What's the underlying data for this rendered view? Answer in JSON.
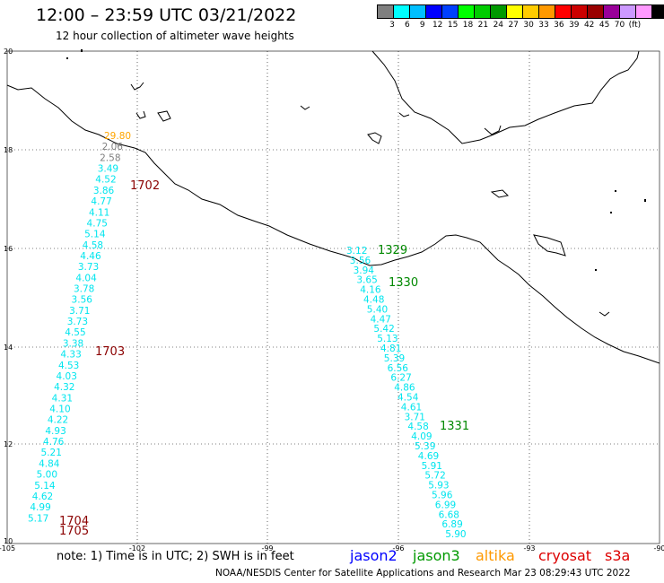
{
  "header": {
    "title": "12:00 – 23:59 UTC 03/21/2022",
    "subtitle": "12 hour collection of altimeter wave heights"
  },
  "color_scale": {
    "colors": [
      "#7f7f7f",
      "#00ffff",
      "#00bfff",
      "#0000ff",
      "#0040ff",
      "#00ff00",
      "#00cc00",
      "#009900",
      "#ffff00",
      "#ffcc00",
      "#ff9900",
      "#ff0000",
      "#cc0000",
      "#990000",
      "#990099",
      "#cc99ff",
      "#ff99ff",
      "#000000"
    ],
    "labels": [
      "3",
      "6",
      "9",
      "12",
      "15",
      "18",
      "21",
      "24",
      "27",
      "30",
      "33",
      "36",
      "39",
      "42",
      "45",
      "70",
      "(ft)"
    ]
  },
  "axes": {
    "lat_labels": [
      "20",
      "18",
      "16",
      "14",
      "12",
      "10"
    ],
    "lon_labels": [
      "-105",
      "-102",
      "-99",
      "-96",
      "-93",
      "-90"
    ]
  },
  "track_colors": {
    "swh": "#00e5ee",
    "swh_gray": "#7f7f7f",
    "swh_orange": "#ffa500",
    "jason3_time": "#008800",
    "cryosat_time": "#8b0000"
  },
  "tracks": {
    "west_swh": [
      "29.80",
      "2.06",
      "2.58",
      "3.49",
      "4.52",
      "3.86",
      "4.77",
      "4.11",
      "4.75",
      "5.14",
      "4.58",
      "4.46",
      "3.73",
      "4.04",
      "3.78",
      "3.56",
      "3.71",
      "3.73",
      "4.55",
      "3.38",
      "4.33",
      "4.53",
      "4.03",
      "4.32",
      "4.31",
      "4.10",
      "4.22",
      "4.93",
      "4.76",
      "5.21",
      "4.84",
      "5.00",
      "5.14",
      "4.62",
      "4.99",
      "5.17"
    ],
    "west_times": [
      "1702",
      "1703",
      "1704",
      "1705"
    ],
    "east_swh": [
      "3.12",
      "3.56",
      "3.94",
      "3.65",
      "4.16",
      "4.48",
      "5.40",
      "4.47",
      "5.42",
      "5.13",
      "4.81",
      "5.39",
      "6.56",
      "6.27",
      "4.86",
      "4.54",
      "4.61",
      "3.71",
      "4.58",
      "4.09",
      "5.39",
      "4.69",
      "5.91",
      "5.72",
      "5.93",
      "5.96",
      "6.99",
      "6.68",
      "6.89",
      "5.90"
    ],
    "east_times": [
      "1329",
      "1330",
      "1331"
    ]
  },
  "legend": {
    "note": "note:  1) Time is in UTC;  2) SWH is in feet",
    "jason2": "jason2",
    "jason3": "jason3",
    "altika": "altika",
    "cryosat": "cryosat",
    "s3a": "s3a",
    "colors": {
      "jason2": "#0000ff",
      "jason3": "#009900",
      "altika": "#ff9900",
      "cryosat": "#dd0000",
      "s3a": "#dd0000"
    }
  },
  "footer": {
    "credit": "NOAA/NESDIS Center for Satellite Applications and Research    Mar 23 08:29:43 UTC 2022"
  }
}
